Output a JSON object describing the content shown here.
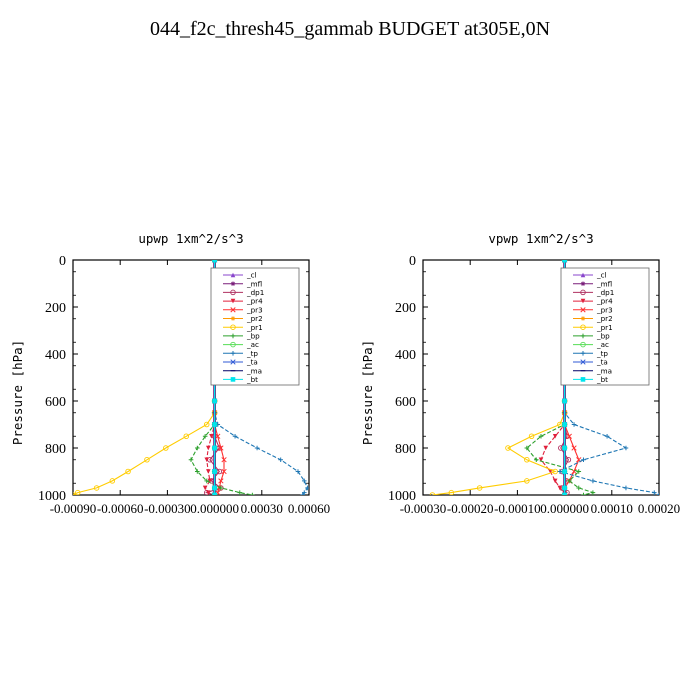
{
  "page": {
    "title": "044_f2c_thresh45_gammab  BUDGET at305E,0N"
  },
  "chart_data": [
    {
      "type": "line",
      "title": "upwp   1xm^2/s^3",
      "xlabel": "",
      "ylabel": "Pressure [hPa]",
      "xlim": [
        -0.0009,
        0.0006
      ],
      "ylim": [
        1000,
        0
      ],
      "xticks": [
        -0.0009,
        -0.0006,
        -0.0003,
        0.0,
        0.0003,
        0.0006
      ],
      "xtick_labels": [
        "-0.00090",
        "-0.00060",
        "-0.00030",
        "0.000000",
        "0.00030",
        "0.00060"
      ],
      "yticks": [
        0,
        200,
        400,
        600,
        800,
        1000
      ],
      "ytick_labels": [
        "0",
        "200",
        "400",
        "600",
        "800",
        "1000"
      ],
      "legend_position": "top-right",
      "pressure": [
        0,
        100,
        200,
        300,
        400,
        500,
        600,
        650,
        700,
        750,
        800,
        850,
        900,
        940,
        970,
        990,
        1000
      ],
      "series": [
        {
          "name": "_cl",
          "color": "#8844cc",
          "values": [
            0,
            0,
            0,
            0,
            0,
            0,
            0,
            0,
            0,
            0,
            0,
            0,
            0,
            0,
            0,
            0,
            0
          ]
        },
        {
          "name": "_mfl",
          "color": "#7a1f7a",
          "values": [
            0,
            0,
            0,
            0,
            0,
            0,
            0,
            0,
            0,
            0,
            0,
            0,
            0,
            0,
            0,
            0,
            0
          ]
        },
        {
          "name": "_dp1",
          "color": "#b03060",
          "values": [
            0,
            0,
            0,
            0,
            0,
            0,
            0,
            0,
            0,
            0,
            3e-05,
            -3e-05,
            3e-05,
            -2e-05,
            4e-05,
            -5e-05,
            0
          ]
        },
        {
          "name": "_pr4",
          "color": "#e0203c",
          "values": [
            0,
            0,
            0,
            0,
            0,
            0,
            0,
            0,
            0,
            -2e-05,
            -4e-05,
            -5e-05,
            -4e-05,
            -3e-05,
            -6e-05,
            -4e-05,
            0
          ]
        },
        {
          "name": "_pr3",
          "color": "#ff3030",
          "values": [
            0,
            0,
            0,
            0,
            0,
            0,
            0,
            0,
            0,
            2e-05,
            4e-05,
            6e-05,
            6e-05,
            4e-05,
            3e-05,
            2e-05,
            0
          ]
        },
        {
          "name": "_pr2",
          "color": "#ff9900",
          "values": [
            0,
            0,
            0,
            0,
            0,
            0,
            0,
            0,
            0,
            0,
            0,
            0,
            0,
            0,
            0,
            0,
            0
          ]
        },
        {
          "name": "_pr1",
          "color": "#ffcc00",
          "values": [
            0,
            0,
            0,
            0,
            0,
            0,
            0,
            0,
            -5e-05,
            -0.00018,
            -0.00031,
            -0.00043,
            -0.00055,
            -0.00065,
            -0.00075,
            -0.00087,
            -0.0009
          ]
        },
        {
          "name": "_bp",
          "color": "#2ca02c",
          "values": [
            0,
            0,
            0,
            0,
            0,
            0,
            0,
            0,
            0,
            -6e-05,
            -0.00011,
            -0.00015,
            -0.00011,
            -5e-05,
            4e-05,
            0.00016,
            0.00024
          ]
        },
        {
          "name": "_ac",
          "color": "#55dd55",
          "values": [
            0,
            0,
            0,
            0,
            0,
            0,
            0,
            0,
            0,
            0,
            0,
            0,
            0,
            0,
            0,
            0,
            0
          ]
        },
        {
          "name": "_tp",
          "color": "#1f77b4",
          "values": [
            0,
            0,
            0,
            0,
            0,
            0,
            0,
            0,
            2e-05,
            0.00013,
            0.00027,
            0.00042,
            0.00053,
            0.00057,
            0.00059,
            0.00057,
            0.00056
          ]
        },
        {
          "name": "_ta",
          "color": "#2f5ad6",
          "values": [
            0,
            0,
            0,
            0,
            0,
            0,
            0,
            0,
            0,
            0,
            0,
            0,
            0,
            0,
            0,
            0,
            0
          ]
        },
        {
          "name": "_ma",
          "color": "#000066",
          "values": [
            0,
            0,
            0,
            0,
            0,
            0,
            0,
            0,
            0,
            0,
            0,
            0,
            0,
            0,
            0,
            0,
            0
          ]
        },
        {
          "name": "_bt",
          "color": "#00e5ee",
          "values": [
            0,
            0,
            0,
            0,
            0,
            0,
            0,
            0,
            0,
            0,
            0,
            0,
            0,
            0,
            0,
            0,
            0
          ]
        }
      ]
    },
    {
      "type": "line",
      "title": "vpwp   1xm^2/s^3",
      "xlabel": "",
      "ylabel": "Pressure [hPa]",
      "xlim": [
        -0.0003,
        0.0002
      ],
      "ylim": [
        1000,
        0
      ],
      "xticks": [
        -0.0003,
        -0.0002,
        -0.0001,
        0.0,
        0.0001,
        0.0002
      ],
      "xtick_labels": [
        "-0.00030",
        "-0.00020",
        "-0.00010",
        "0.000000",
        "0.00010",
        "0.00020"
      ],
      "yticks": [
        0,
        200,
        400,
        600,
        800,
        1000
      ],
      "ytick_labels": [
        "0",
        "200",
        "400",
        "600",
        "800",
        "1000"
      ],
      "legend_position": "top-right",
      "pressure": [
        0,
        100,
        200,
        300,
        400,
        500,
        600,
        650,
        700,
        750,
        800,
        850,
        900,
        940,
        970,
        990,
        1000
      ],
      "series": [
        {
          "name": "_cl",
          "color": "#8844cc",
          "values": [
            0,
            0,
            0,
            0,
            0,
            0,
            0,
            0,
            0,
            0,
            0,
            0,
            0,
            0,
            0,
            0,
            0
          ]
        },
        {
          "name": "_mfl",
          "color": "#7a1f7a",
          "values": [
            0,
            0,
            0,
            0,
            0,
            0,
            0,
            0,
            0,
            0,
            0,
            0,
            0,
            0,
            0,
            0,
            0
          ]
        },
        {
          "name": "_dp1",
          "color": "#b03060",
          "values": [
            0,
            0,
            0,
            0,
            0,
            0,
            0,
            0,
            0,
            5e-06,
            -8e-06,
            8e-06,
            -5e-06,
            4e-06,
            -6e-06,
            5e-06,
            0
          ]
        },
        {
          "name": "_pr4",
          "color": "#e0203c",
          "values": [
            0,
            0,
            0,
            0,
            0,
            0,
            0,
            0,
            0,
            -2e-05,
            -4e-05,
            -5e-05,
            -3e-05,
            -2e-05,
            -1e-05,
            0,
            0
          ]
        },
        {
          "name": "_pr3",
          "color": "#ff3030",
          "values": [
            0,
            0,
            0,
            0,
            0,
            0,
            0,
            0,
            0,
            1e-05,
            2e-05,
            3e-05,
            2e-05,
            1e-05,
            0,
            0,
            0
          ]
        },
        {
          "name": "_pr2",
          "color": "#ff9900",
          "values": [
            0,
            0,
            0,
            0,
            0,
            0,
            0,
            0,
            0,
            0,
            0,
            0,
            0,
            0,
            0,
            0,
            0
          ]
        },
        {
          "name": "_pr1",
          "color": "#ffcc00",
          "values": [
            0,
            0,
            0,
            0,
            0,
            0,
            0,
            0,
            -1e-05,
            -7e-05,
            -0.00012,
            -8e-05,
            -2e-05,
            -8e-05,
            -0.00018,
            -0.00024,
            -0.00028
          ]
        },
        {
          "name": "_bp",
          "color": "#2ca02c",
          "values": [
            0,
            0,
            0,
            0,
            0,
            0,
            0,
            0,
            0,
            -5e-05,
            -8e-05,
            -6e-05,
            3e-05,
            1e-05,
            3e-05,
            6e-05,
            4e-05
          ]
        },
        {
          "name": "_ac",
          "color": "#55dd55",
          "values": [
            0,
            0,
            0,
            0,
            0,
            0,
            0,
            0,
            0,
            0,
            0,
            0,
            0,
            0,
            0,
            0,
            0
          ]
        },
        {
          "name": "_tp",
          "color": "#1f77b4",
          "values": [
            0,
            0,
            0,
            0,
            0,
            0,
            0,
            0,
            2e-05,
            9e-05,
            0.00013,
            4e-05,
            -1e-05,
            6e-05,
            0.00013,
            0.00019,
            0.0002
          ]
        },
        {
          "name": "_ta",
          "color": "#2f5ad6",
          "values": [
            0,
            0,
            0,
            0,
            0,
            0,
            0,
            0,
            0,
            0,
            0,
            0,
            0,
            0,
            0,
            0,
            0
          ]
        },
        {
          "name": "_ma",
          "color": "#000066",
          "values": [
            0,
            0,
            0,
            0,
            0,
            0,
            0,
            0,
            0,
            0,
            0,
            0,
            0,
            0,
            0,
            0,
            0
          ]
        },
        {
          "name": "_bt",
          "color": "#00e5ee",
          "values": [
            0,
            0,
            0,
            0,
            0,
            0,
            0,
            0,
            0,
            0,
            0,
            0,
            0,
            0,
            0,
            0,
            0
          ]
        }
      ]
    }
  ]
}
